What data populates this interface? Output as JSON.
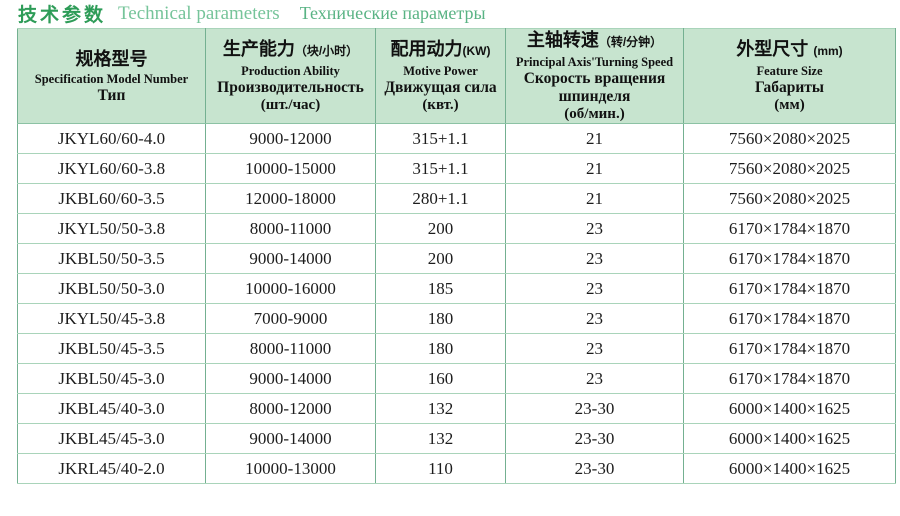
{
  "title": {
    "cn": "技术参数",
    "en": "Technical parameters",
    "ru": "Технические параметры"
  },
  "colors": {
    "title_cn_green": "#2e9c58",
    "title_en_green": "#76c49a",
    "header_background": "#c7e4cf",
    "border_green": "#74b091",
    "row_divider_green": "#a9d4ba",
    "text": "#1c1c1c"
  },
  "table": {
    "headers": [
      {
        "cn": "规格型号",
        "cn_small": "",
        "en": "Specification Model Number",
        "ru": "Тип",
        "ru2": ""
      },
      {
        "cn": "生产能力",
        "cn_small": "（块/小时）",
        "en": "Production Ability",
        "ru": "Производительность",
        "ru2": "(шт./час)"
      },
      {
        "cn": "配用动力",
        "cn_small": "(KW)",
        "en": "Motive Power",
        "ru": "Движущая сила",
        "ru2": "(квт.)"
      },
      {
        "cn": "主轴转速",
        "cn_small": "（转/分钟）",
        "en": "Principal Axis'Turning Speed",
        "ru": "Скорость вращения шпинделя",
        "ru2": "(об/мин.)"
      },
      {
        "cn": "外型尺寸",
        "cn_small": "(mm)",
        "en": "Feature Size",
        "ru": "Габариты",
        "ru2": "(мм)"
      }
    ],
    "rows": [
      [
        "JKYL60/60-4.0",
        "9000-12000",
        "315+1.1",
        "21",
        "7560×2080×2025"
      ],
      [
        "JKYL60/60-3.8",
        "10000-15000",
        "315+1.1",
        "21",
        "7560×2080×2025"
      ],
      [
        "JKBL60/60-3.5",
        "12000-18000",
        "280+1.1",
        "21",
        "7560×2080×2025"
      ],
      [
        "JKYL50/50-3.8",
        "8000-11000",
        "200",
        "23",
        "6170×1784×1870"
      ],
      [
        "JKBL50/50-3.5",
        "9000-14000",
        "200",
        "23",
        "6170×1784×1870"
      ],
      [
        "JKBL50/50-3.0",
        "10000-16000",
        "185",
        "23",
        "6170×1784×1870"
      ],
      [
        "JKYL50/45-3.8",
        "7000-9000",
        "180",
        "23",
        "6170×1784×1870"
      ],
      [
        "JKBL50/45-3.5",
        "8000-11000",
        "180",
        "23",
        "6170×1784×1870"
      ],
      [
        "JKBL50/45-3.0",
        "9000-14000",
        "160",
        "23",
        "6170×1784×1870"
      ],
      [
        "JKBL45/40-3.0",
        "8000-12000",
        "132",
        "23-30",
        "6000×1400×1625"
      ],
      [
        "JKBL45/45-3.0",
        "9000-14000",
        "132",
        "23-30",
        "6000×1400×1625"
      ],
      [
        "JKRL45/40-2.0",
        "10000-13000",
        "110",
        "23-30",
        "6000×1400×1625"
      ]
    ]
  }
}
